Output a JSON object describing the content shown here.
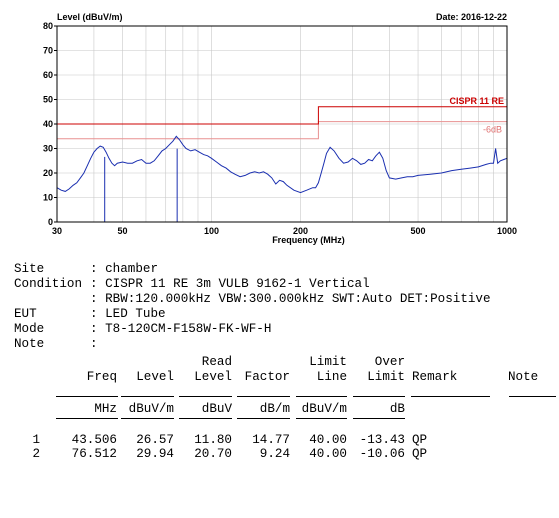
{
  "chart_data": {
    "type": "line",
    "title_left": "Level (dBuV/m)",
    "title_right": "Date: 2016-12-22",
    "xlabel": "Frequency (MHz)",
    "x_scale": "log",
    "xlim": [
      30,
      1000
    ],
    "ylim": [
      0,
      80
    ],
    "x_ticks": [
      30,
      50,
      100,
      200,
      500,
      1000
    ],
    "x_tick_labels": [
      "30",
      "50",
      "100",
      "200",
      "500",
      "1000"
    ],
    "y_ticks": [
      0,
      10,
      20,
      30,
      40,
      50,
      60,
      70,
      80
    ],
    "y_tick_labels": [
      "0",
      "10",
      "20",
      "30",
      "40",
      "50",
      "60",
      "70",
      "80"
    ],
    "grid": true,
    "limit_label": "CISPR 11 RE",
    "margin_label": "-6dB",
    "limit_line": [
      [
        30,
        40
      ],
      [
        230,
        40
      ],
      [
        230,
        47
      ],
      [
        1000,
        47
      ]
    ],
    "margin_line": [
      [
        30,
        34
      ],
      [
        230,
        34
      ],
      [
        230,
        41
      ],
      [
        1000,
        41
      ]
    ],
    "series": [
      {
        "color": "#1a2fb0",
        "points": [
          [
            30,
            14
          ],
          [
            31,
            13
          ],
          [
            32,
            12.5
          ],
          [
            33,
            13.5
          ],
          [
            34,
            15
          ],
          [
            35,
            16
          ],
          [
            36,
            18
          ],
          [
            37,
            20
          ],
          [
            38,
            23
          ],
          [
            39,
            26
          ],
          [
            40,
            28.5
          ],
          [
            41,
            30
          ],
          [
            42,
            31
          ],
          [
            43,
            30.5
          ],
          [
            44,
            28.5
          ],
          [
            45,
            26
          ],
          [
            46,
            24
          ],
          [
            47,
            23
          ],
          [
            48,
            24
          ],
          [
            50,
            24.5
          ],
          [
            52,
            24
          ],
          [
            54,
            24
          ],
          [
            56,
            25
          ],
          [
            58,
            25.5
          ],
          [
            60,
            24
          ],
          [
            62,
            24
          ],
          [
            64,
            25
          ],
          [
            66,
            27
          ],
          [
            68,
            29
          ],
          [
            70,
            30
          ],
          [
            72,
            31.5
          ],
          [
            74,
            33
          ],
          [
            76,
            35
          ],
          [
            78,
            33.5
          ],
          [
            80,
            31.5
          ],
          [
            82,
            30
          ],
          [
            85,
            29
          ],
          [
            88,
            29.5
          ],
          [
            91,
            28.5
          ],
          [
            94,
            27.5
          ],
          [
            97,
            27
          ],
          [
            100,
            26
          ],
          [
            104,
            24.5
          ],
          [
            108,
            23
          ],
          [
            112,
            22
          ],
          [
            116,
            20.5
          ],
          [
            120,
            19.5
          ],
          [
            125,
            18.5
          ],
          [
            130,
            19
          ],
          [
            135,
            20
          ],
          [
            140,
            20.5
          ],
          [
            145,
            20
          ],
          [
            150,
            20.5
          ],
          [
            155,
            19.5
          ],
          [
            160,
            18
          ],
          [
            165,
            15.5
          ],
          [
            170,
            17
          ],
          [
            175,
            16.5
          ],
          [
            180,
            15
          ],
          [
            190,
            13
          ],
          [
            200,
            12
          ],
          [
            210,
            13
          ],
          [
            220,
            14
          ],
          [
            225,
            14
          ],
          [
            230,
            16
          ],
          [
            235,
            20
          ],
          [
            240,
            24
          ],
          [
            245,
            28
          ],
          [
            252,
            30.5
          ],
          [
            260,
            29
          ],
          [
            270,
            26
          ],
          [
            280,
            24
          ],
          [
            290,
            24.5
          ],
          [
            300,
            26
          ],
          [
            310,
            25
          ],
          [
            320,
            23.5
          ],
          [
            330,
            24
          ],
          [
            340,
            25.5
          ],
          [
            350,
            25
          ],
          [
            360,
            27
          ],
          [
            370,
            28.5
          ],
          [
            380,
            26
          ],
          [
            390,
            21
          ],
          [
            400,
            18
          ],
          [
            420,
            17.5
          ],
          [
            440,
            18
          ],
          [
            460,
            18.5
          ],
          [
            480,
            18.5
          ],
          [
            500,
            19
          ],
          [
            550,
            19.5
          ],
          [
            600,
            20
          ],
          [
            650,
            21
          ],
          [
            700,
            21.5
          ],
          [
            750,
            22
          ],
          [
            800,
            22.5
          ],
          [
            850,
            23.5
          ],
          [
            880,
            24
          ],
          [
            900,
            24
          ],
          [
            915,
            30
          ],
          [
            930,
            24
          ],
          [
            950,
            25
          ],
          [
            975,
            25.5
          ],
          [
            1000,
            26
          ]
        ]
      }
    ],
    "markers": [
      {
        "freq": 43.506,
        "level": 26.57
      },
      {
        "freq": 76.512,
        "level": 29.94
      }
    ]
  },
  "info": {
    "rows": [
      {
        "label": "Site",
        "value": ": chamber"
      },
      {
        "label": "Condition",
        "value": ": CISPR 11 RE 3m VULB 9162-1 Vertical"
      },
      {
        "label": "",
        "value": ": RBW:120.000kHz VBW:300.000kHz SWT:Auto DET:Positive"
      },
      {
        "label": "EUT",
        "value": ": LED Tube"
      },
      {
        "label": "Mode",
        "value": ": T8-120CM-F158W-FK-WF-H"
      },
      {
        "label": "Note",
        "value": ":"
      }
    ]
  },
  "table": {
    "header_top": [
      "",
      "",
      "",
      "Read",
      "",
      "Limit",
      "Over",
      "",
      ""
    ],
    "header": [
      "",
      "Freq",
      "Level",
      "Level",
      "Factor",
      "Line",
      "Limit",
      "Remark",
      "Note"
    ],
    "units": [
      "",
      "MHz",
      "dBuV/m",
      "dBuV",
      "dB/m",
      "dBuV/m",
      "dB",
      "",
      ""
    ],
    "rows": [
      [
        "1",
        "43.506",
        "26.57",
        "11.80",
        "14.77",
        "40.00",
        "-13.43",
        "QP",
        ""
      ],
      [
        "2",
        "76.512",
        "29.94",
        "20.70",
        "9.24",
        "40.00",
        "-10.06",
        "QP",
        ""
      ]
    ]
  }
}
